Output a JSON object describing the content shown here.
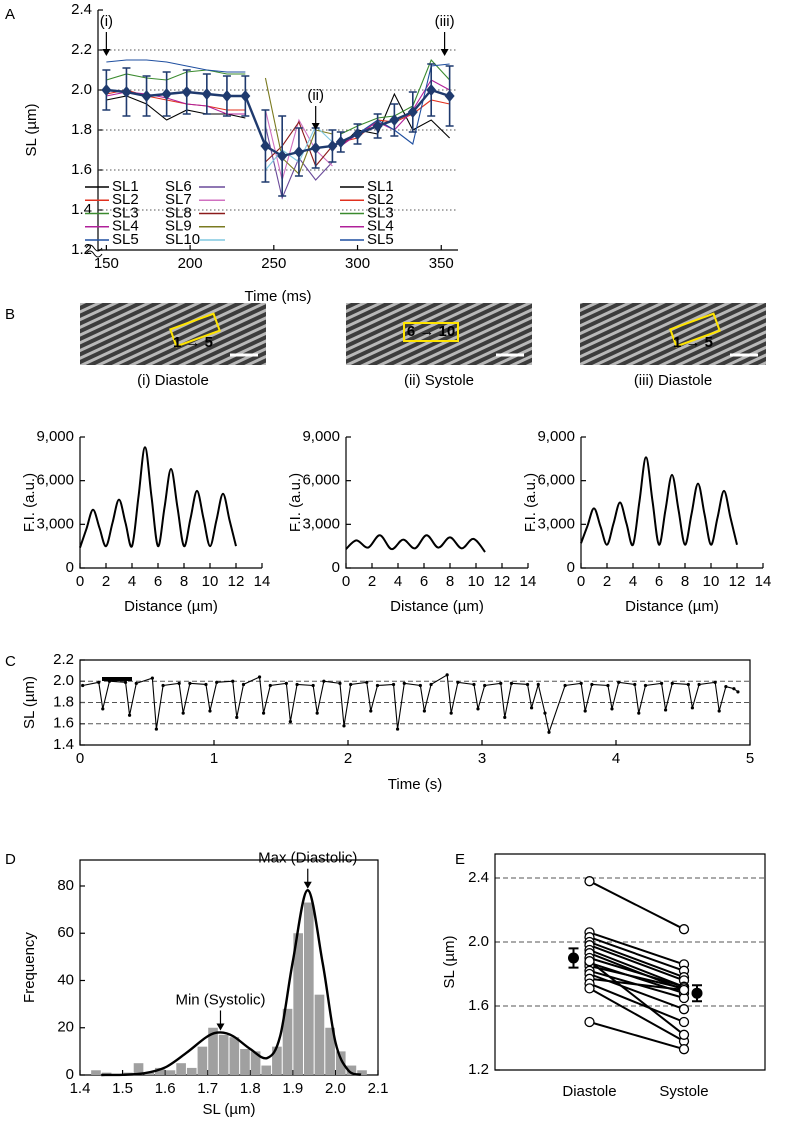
{
  "chart_data": [
    {
      "type": "line",
      "panel": "A",
      "xlabel": "Time (ms)",
      "ylabel": "SL (µm)",
      "xlim": [
        145,
        360
      ],
      "xticks": [
        150,
        200,
        250,
        300,
        350
      ],
      "ylim": [
        1.2,
        2.4
      ],
      "yticks": [
        1.2,
        1.4,
        1.6,
        1.8,
        {
          "value": 2,
          "label": "2.0"
        },
        2.2,
        2.4
      ],
      "grid": "dotted",
      "x": [
        150,
        162,
        174,
        186,
        198,
        210,
        222,
        233,
        245,
        255,
        265,
        275,
        285,
        290,
        300,
        312,
        322,
        333,
        344,
        355
      ],
      "series": [
        {
          "name": "SL1",
          "color": "#000000",
          "values": [
            1.95,
            1.97,
            1.93,
            1.85,
            1.9,
            1.88,
            1.88,
            1.86,
            null,
            null,
            null,
            null,
            null,
            1.72,
            1.8,
            1.78,
            1.98,
            1.8,
            1.85,
            1.76
          ]
        },
        {
          "name": "SL2",
          "color": "#e0301e",
          "values": [
            1.98,
            2.0,
            1.97,
            1.95,
            1.93,
            1.92,
            1.9,
            1.9,
            null,
            null,
            null,
            null,
            null,
            1.74,
            1.76,
            1.85,
            1.84,
            1.88,
            1.95,
            1.93
          ]
        },
        {
          "name": "SL3",
          "color": "#3a8a2e",
          "values": [
            2.05,
            2.08,
            2.06,
            2.05,
            2.09,
            2.1,
            2.08,
            2.08,
            null,
            null,
            null,
            null,
            null,
            1.78,
            1.82,
            1.86,
            1.87,
            1.92,
            2.15,
            2.05
          ]
        },
        {
          "name": "SL4",
          "color": "#b0209a",
          "values": [
            1.97,
            1.99,
            1.98,
            1.96,
            1.93,
            1.92,
            1.88,
            1.88,
            null,
            null,
            null,
            null,
            null,
            1.72,
            1.78,
            1.84,
            1.8,
            1.9,
            2.05,
            2.0
          ]
        },
        {
          "name": "SL5",
          "color": "#1f4fa0",
          "values": [
            2.14,
            2.15,
            2.15,
            2.14,
            2.12,
            2.1,
            2.09,
            2.09,
            null,
            null,
            null,
            null,
            null,
            1.74,
            1.78,
            1.85,
            1.8,
            1.73,
            2.12,
            2.13
          ]
        },
        {
          "name": "SL6",
          "color": "#6a4a9a",
          "values": [
            null,
            null,
            null,
            null,
            null,
            null,
            null,
            null,
            1.82,
            1.46,
            1.66,
            1.55,
            1.64,
            null,
            null,
            null,
            null,
            null,
            null,
            null
          ]
        },
        {
          "name": "SL7",
          "color": "#d070c0",
          "values": [
            null,
            null,
            null,
            null,
            null,
            null,
            null,
            null,
            1.9,
            1.55,
            1.85,
            1.7,
            1.62,
            null,
            null,
            null,
            null,
            null,
            null,
            null
          ]
        },
        {
          "name": "SL8",
          "color": "#8b1a1a",
          "values": [
            null,
            null,
            null,
            null,
            null,
            null,
            null,
            null,
            1.64,
            1.72,
            1.84,
            1.62,
            1.72,
            null,
            null,
            null,
            null,
            null,
            null,
            null
          ]
        },
        {
          "name": "SL9",
          "color": "#7a7a20",
          "values": [
            null,
            null,
            null,
            null,
            null,
            null,
            null,
            null,
            2.06,
            1.66,
            1.58,
            1.8,
            1.78,
            null,
            null,
            null,
            null,
            null,
            null,
            null
          ]
        },
        {
          "name": "SL10",
          "color": "#80c8e0",
          "values": [
            null,
            null,
            null,
            null,
            null,
            null,
            null,
            null,
            1.6,
            1.7,
            1.64,
            1.82,
            1.74,
            null,
            null,
            null,
            null,
            null,
            null,
            null
          ]
        },
        {
          "color": "#1f3a6e",
          "marker": "diamond",
          "values": [
            2.0,
            1.99,
            1.97,
            1.98,
            1.99,
            1.98,
            1.97,
            1.97,
            1.72,
            1.67,
            1.69,
            1.71,
            1.72,
            1.74,
            1.78,
            1.82,
            1.85,
            1.89,
            2.0,
            1.97
          ],
          "errors": [
            0.1,
            0.12,
            0.1,
            0.11,
            0.11,
            0.1,
            0.1,
            0.1,
            0.18,
            0.2,
            0.12,
            0.1,
            0.08,
            0.05,
            0.05,
            0.06,
            0.08,
            0.1,
            0.13,
            0.15
          ]
        }
      ],
      "annotations": [
        {
          "text": "(i)",
          "x": 150,
          "y": 2.17
        },
        {
          "text": "(ii)",
          "x": 275,
          "y": 1.8
        },
        {
          "text": "(iii)",
          "x": 352,
          "y": 2.17
        }
      ]
    },
    {
      "type": "line",
      "smooth": true,
      "xlabel": "Distance (µm)",
      "ylabel": "F.I. (a.u.)",
      "xlim": [
        0,
        14
      ],
      "xticks": [
        0,
        2,
        4,
        6,
        8,
        10,
        12,
        14
      ],
      "ylim": [
        0,
        9000
      ],
      "yticks": [
        0,
        {
          "value": 3000,
          "label": "3,000"
        },
        {
          "value": 6000,
          "label": "6,000"
        },
        {
          "value": 9000,
          "label": "9,000"
        }
      ],
      "color": "#000000",
      "x": [
        0,
        0.5,
        1,
        1.5,
        2,
        2.5,
        3,
        3.5,
        4,
        4.5,
        5,
        5.5,
        6,
        6.5,
        7,
        7.5,
        8,
        8.5,
        9,
        9.5,
        10,
        10.5,
        11,
        11.5,
        12
      ],
      "values": [
        1400,
        2700,
        4000,
        2750,
        1500,
        3100,
        4700,
        3100,
        1500,
        4900,
        8300,
        4900,
        1500,
        4150,
        6800,
        4150,
        1500,
        3400,
        5300,
        3400,
        1500,
        3300,
        5100,
        3300,
        1500
      ]
    },
    {
      "type": "line",
      "smooth": true,
      "xlabel": "Distance (µm)",
      "ylabel": "F.I. (a.u.)",
      "xlim": [
        0,
        14
      ],
      "xticks": [
        0,
        2,
        4,
        6,
        8,
        10,
        12,
        14
      ],
      "ylim": [
        0,
        9000
      ],
      "yticks": [
        0,
        {
          "value": 3000,
          "label": "3,000"
        },
        {
          "value": 6000,
          "label": "6,000"
        },
        {
          "value": 9000,
          "label": "9,000"
        }
      ],
      "color": "#000000",
      "x": [
        0,
        0.8,
        1.7,
        2.6,
        3.5,
        4.4,
        5.3,
        6.2,
        7.1,
        8.0,
        8.9,
        9.8,
        10.7
      ],
      "values": [
        1300,
        1900,
        1400,
        2250,
        1300,
        1950,
        1350,
        2250,
        1400,
        2100,
        1350,
        2000,
        1100
      ]
    },
    {
      "type": "line",
      "smooth": true,
      "xlabel": "Distance (µm)",
      "ylabel": "F.I. (a.u.)",
      "xlim": [
        0,
        14
      ],
      "xticks": [
        0,
        2,
        4,
        6,
        8,
        10,
        12,
        14
      ],
      "ylim": [
        0,
        9000
      ],
      "yticks": [
        0,
        {
          "value": 3000,
          "label": "3,000"
        },
        {
          "value": 6000,
          "label": "6,000"
        },
        {
          "value": 9000,
          "label": "9,000"
        }
      ],
      "color": "#000000",
      "x": [
        0,
        0.5,
        1,
        1.5,
        2,
        2.5,
        3,
        3.5,
        4,
        4.5,
        5,
        5.5,
        6,
        6.5,
        7,
        7.5,
        8,
        8.5,
        9,
        9.5,
        10,
        10.5,
        11,
        11.5,
        12
      ],
      "values": [
        1700,
        2900,
        4100,
        2850,
        1600,
        3050,
        4500,
        3050,
        1600,
        4600,
        7600,
        4600,
        1600,
        4000,
        6400,
        4000,
        1600,
        3700,
        5800,
        3700,
        1600,
        3450,
        5300,
        3450,
        1600
      ]
    },
    {
      "type": "line",
      "panel": "C",
      "marker": "circle",
      "xlabel": "Time (s)",
      "ylabel": "SL (µm)",
      "xlim": [
        0,
        5
      ],
      "xticks": [
        0,
        1,
        2,
        3,
        4,
        5
      ],
      "ylim": [
        1.4,
        2.2
      ],
      "yticks": [
        1.4,
        1.6,
        1.8,
        {
          "value": 2,
          "label": "2.0"
        },
        2.2
      ],
      "grid": "dashed",
      "color": "#000000",
      "x": [
        0.02,
        0.14,
        0.17,
        0.22,
        0.34,
        0.37,
        0.42,
        0.54,
        0.57,
        0.62,
        0.74,
        0.77,
        0.82,
        0.94,
        0.97,
        1.02,
        1.14,
        1.17,
        1.22,
        1.34,
        1.37,
        1.42,
        1.54,
        1.57,
        1.62,
        1.74,
        1.77,
        1.82,
        1.94,
        1.97,
        2.02,
        2.14,
        2.17,
        2.22,
        2.34,
        2.37,
        2.42,
        2.54,
        2.57,
        2.62,
        2.74,
        2.77,
        2.82,
        2.94,
        2.97,
        3.02,
        3.14,
        3.17,
        3.22,
        3.34,
        3.37,
        3.42,
        3.47,
        3.5,
        3.62,
        3.74,
        3.77,
        3.82,
        3.94,
        3.97,
        4.02,
        4.14,
        4.17,
        4.22,
        4.34,
        4.37,
        4.42,
        4.54,
        4.57,
        4.62,
        4.74,
        4.77,
        4.82,
        4.88,
        4.91
      ],
      "values": [
        1.96,
        1.99,
        1.74,
        2.0,
        1.99,
        1.68,
        1.98,
        2.03,
        1.55,
        1.96,
        1.98,
        1.7,
        1.98,
        1.97,
        1.72,
        1.99,
        2.0,
        1.66,
        1.97,
        2.04,
        1.7,
        1.96,
        1.98,
        1.62,
        1.97,
        1.96,
        1.7,
        2.0,
        1.98,
        1.58,
        1.97,
        1.99,
        1.72,
        1.96,
        1.97,
        1.55,
        1.98,
        1.96,
        1.72,
        1.97,
        2.06,
        1.7,
        1.99,
        1.97,
        1.74,
        1.96,
        1.98,
        1.66,
        1.98,
        1.97,
        1.75,
        1.97,
        1.7,
        1.52,
        1.96,
        1.98,
        1.72,
        1.97,
        1.96,
        1.74,
        1.99,
        1.97,
        1.7,
        1.96,
        1.98,
        1.73,
        1.98,
        1.97,
        1.75,
        1.97,
        1.99,
        1.72,
        1.95,
        1.93,
        1.9
      ]
    },
    {
      "type": "histogram",
      "panel": "D",
      "xlabel": "SL (µm)",
      "ylabel": "Frequency",
      "color": "#a0a0a0",
      "xlim": [
        1.4,
        2.1
      ],
      "xticks": [
        1.4,
        1.5,
        1.6,
        1.7,
        1.8,
        1.9,
        {
          "value": 2,
          "label": "2.0"
        },
        2.1
      ],
      "ylim": [
        0,
        91
      ],
      "yticks": [
        0,
        20,
        40,
        60,
        80
      ],
      "bins": [
        1.425,
        1.45,
        1.475,
        1.5,
        1.525,
        1.55,
        1.575,
        1.6,
        1.625,
        1.65,
        1.675,
        1.7,
        1.725,
        1.75,
        1.775,
        1.8,
        1.825,
        1.85,
        1.875,
        1.9,
        1.925,
        1.95,
        1.975,
        2.0,
        2.025,
        2.05,
        2.075
      ],
      "counts": [
        2,
        1,
        0,
        1,
        5,
        1,
        3,
        2,
        5,
        3,
        12,
        20,
        17,
        16,
        11,
        10,
        4,
        12,
        28,
        60,
        73,
        34,
        20,
        10,
        4,
        2
      ],
      "fit": {
        "x": [
          1.45,
          1.5,
          1.55,
          1.6,
          1.65,
          1.7,
          1.73,
          1.76,
          1.8,
          1.84,
          1.87,
          1.9,
          1.935,
          1.97,
          2.0,
          2.03,
          2.06
        ],
        "y": [
          0,
          0.1,
          0.7,
          3.2,
          9.4,
          16.4,
          18,
          16.4,
          11,
          7.2,
          16.3,
          48.2,
          78.2,
          47.4,
          13.9,
          2,
          0.1
        ]
      },
      "annotations": [
        {
          "text": "Max (Diastolic)",
          "x": 1.935,
          "y": 78
        },
        {
          "text": "Min (Systolic)",
          "x": 1.73,
          "y": 18
        }
      ]
    },
    {
      "type": "paired",
      "panel": "E",
      "ylabel": "SL (µm)",
      "categories": [
        "Diastole",
        "Systole"
      ],
      "ylim": [
        1.2,
        2.55
      ],
      "yticks": [
        1.2,
        1.6,
        {
          "value": 2,
          "label": "2.0"
        },
        2.4
      ],
      "grid": "dashed",
      "pairs": [
        [
          2.38,
          2.08
        ],
        [
          2.06,
          1.86
        ],
        [
          2.03,
          1.82
        ],
        [
          2.0,
          1.78
        ],
        [
          1.98,
          1.76
        ],
        [
          1.95,
          1.72
        ],
        [
          1.93,
          1.7
        ],
        [
          1.9,
          1.72
        ],
        [
          1.87,
          1.68
        ],
        [
          1.85,
          1.71
        ],
        [
          1.82,
          1.65
        ],
        [
          1.8,
          1.58
        ],
        [
          1.77,
          1.7
        ],
        [
          1.74,
          1.5
        ],
        [
          1.71,
          1.38
        ],
        [
          1.5,
          1.33
        ],
        [
          1.88,
          1.42
        ]
      ],
      "means": [
        1.9,
        1.68
      ],
      "errors": [
        0.06,
        0.05
      ]
    }
  ],
  "panel_b": {
    "panel": "B",
    "images": [
      {
        "roi": "1 → 5",
        "caption": "(i) Diastole"
      },
      {
        "roi": "6 → 10",
        "caption": "(ii) Systole"
      },
      {
        "roi": "1 → 5",
        "caption": "(iii) Diastole"
      }
    ]
  }
}
